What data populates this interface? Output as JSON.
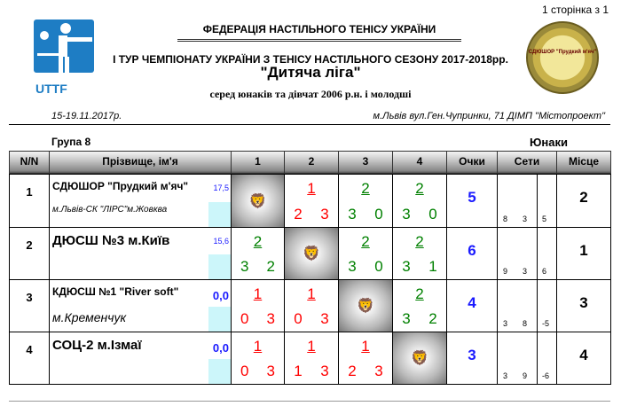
{
  "page_info": "1 сторінка з 1",
  "logo_text": "UTTF",
  "seal_text": "СДЮШОР \"Прудкий м'яч\"",
  "federation": "ФЕДЕРАЦІЯ НАСТІЛЬНОГО ТЕНІСУ УКРАЇНИ",
  "title1": "І ТУР ЧЕМПІОНАТУ УКРАЇНИ З ТЕНІСУ НАСТІЛЬНОГО СЕЗОНУ 2017-2018рр.",
  "title2": "\"Дитяча ліга\"",
  "title3": "серед юнаків та дівчат 2006 р.н. і молодші",
  "date": "15-19.11.2017р.",
  "venue": "м.Львів вул.Ген.Чупринки, 71 ДІМП \"Містопроект\"",
  "group": "Група 8",
  "gender": "Юнаки",
  "headers": [
    "N/N",
    "Прізвище, ім'я",
    "1",
    "2",
    "3",
    "4",
    "Очки",
    "Сети",
    "Місце"
  ],
  "colors": {
    "win": "#008000",
    "loss": "#ff0000",
    "points": "#1a1aff",
    "rating_bg": "#ccf6fa"
  },
  "rows": [
    {
      "num": "1",
      "team": "СДЮШОР \"Прудкий м'яч\"",
      "city": "м.Львів-СК \"ЛІРС\"м.Жовква",
      "rating": "17,5",
      "points": "5",
      "sets_won": "8",
      "sets_lost": "3",
      "sets_diff": "5",
      "place": "2",
      "matches": [
        null,
        {
          "score": "1",
          "sets": [
            "2",
            "3"
          ],
          "result": "loss"
        },
        {
          "score": "2",
          "sets": [
            "3",
            "0"
          ],
          "result": "win"
        },
        {
          "score": "2",
          "sets": [
            "3",
            "0"
          ],
          "result": "win"
        }
      ]
    },
    {
      "num": "2",
      "team": "ДЮСШ №3 м.Київ",
      "city": "",
      "rating": "15,6",
      "points": "6",
      "sets_won": "9",
      "sets_lost": "3",
      "sets_diff": "6",
      "place": "1",
      "matches": [
        {
          "score": "2",
          "sets": [
            "3",
            "2"
          ],
          "result": "win"
        },
        null,
        {
          "score": "2",
          "sets": [
            "3",
            "0"
          ],
          "result": "win"
        },
        {
          "score": "2",
          "sets": [
            "3",
            "1"
          ],
          "result": "win"
        }
      ]
    },
    {
      "num": "3",
      "team": "КДЮСШ №1 \"River soft\"",
      "city": "м.Кременчук",
      "rating": "0,0",
      "points": "4",
      "sets_won": "3",
      "sets_lost": "8",
      "sets_diff": "-5",
      "place": "3",
      "matches": [
        {
          "score": "1",
          "sets": [
            "0",
            "3"
          ],
          "result": "loss"
        },
        {
          "score": "1",
          "sets": [
            "0",
            "3"
          ],
          "result": "loss"
        },
        null,
        {
          "score": "2",
          "sets": [
            "3",
            "2"
          ],
          "result": "win"
        }
      ]
    },
    {
      "num": "4",
      "team": "СОЦ-2 м.Ізмаї",
      "city": "",
      "rating": "0,0",
      "points": "3",
      "sets_won": "3",
      "sets_lost": "9",
      "sets_diff": "-6",
      "place": "4",
      "matches": [
        {
          "score": "1",
          "sets": [
            "0",
            "3"
          ],
          "result": "loss"
        },
        {
          "score": "1",
          "sets": [
            "1",
            "3"
          ],
          "result": "loss"
        },
        {
          "score": "1",
          "sets": [
            "2",
            "3"
          ],
          "result": "loss"
        },
        null
      ]
    }
  ]
}
